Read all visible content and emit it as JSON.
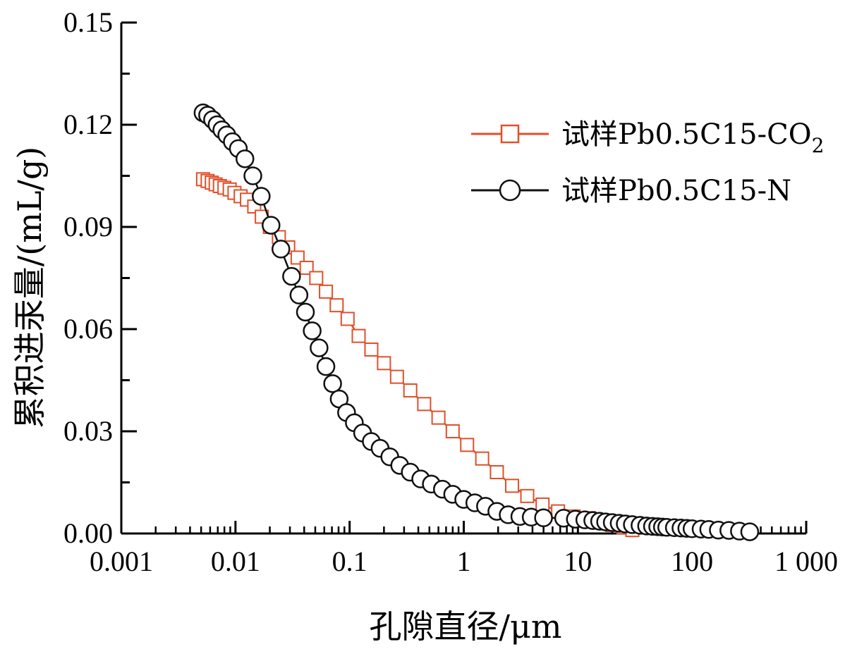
{
  "chart_data": {
    "type": "line",
    "title": "",
    "xlabel": "孔隙直径/μm",
    "ylabel": "累积进汞量/(mL/g)",
    "x_scale": "log",
    "xlim": [
      0.001,
      1000
    ],
    "ylim": [
      0,
      0.15
    ],
    "x_ticks": [
      0.001,
      0.01,
      0.1,
      1,
      10,
      100,
      1000
    ],
    "x_tick_labels": [
      "0.001",
      "0.01",
      "0.1",
      "1",
      "10",
      "100",
      "1 000"
    ],
    "y_ticks": [
      0,
      0.03,
      0.06,
      0.09,
      0.12,
      0.15
    ],
    "y_tick_labels": [
      "0.00",
      "0.03",
      "0.06",
      "0.09",
      "0.12",
      "0.15"
    ],
    "grid": false,
    "legend_position": "top-right",
    "series": [
      {
        "name": "试样Pb0.5C15-CO",
        "name_subscript": "2",
        "color": "#e0502a",
        "marker": "square",
        "x": [
          0.0052,
          0.0057,
          0.0062,
          0.0067,
          0.0073,
          0.008,
          0.0089,
          0.0098,
          0.0111,
          0.0126,
          0.0146,
          0.017,
          0.02,
          0.024,
          0.029,
          0.035,
          0.042,
          0.051,
          0.062,
          0.077,
          0.096,
          0.12,
          0.155,
          0.2,
          0.26,
          0.34,
          0.45,
          0.6,
          0.8,
          1.07,
          1.45,
          1.95,
          2.65,
          3.6,
          4.9,
          6.7,
          9.2,
          12.5,
          16,
          20,
          25,
          30
        ],
        "y": [
          0.104,
          0.1035,
          0.103,
          0.1025,
          0.102,
          0.1015,
          0.101,
          0.1,
          0.099,
          0.098,
          0.096,
          0.093,
          0.09,
          0.087,
          0.084,
          0.081,
          0.078,
          0.075,
          0.071,
          0.067,
          0.063,
          0.058,
          0.054,
          0.05,
          0.046,
          0.042,
          0.038,
          0.034,
          0.03,
          0.026,
          0.022,
          0.018,
          0.014,
          0.011,
          0.0085,
          0.0065,
          0.005,
          0.0045,
          0.0035,
          0.0025,
          0.0018,
          0.001
        ]
      },
      {
        "name": "试样Pb0.5C15-N",
        "color": "#111111",
        "marker": "circle",
        "x": [
          0.0052,
          0.0057,
          0.0063,
          0.0069,
          0.0076,
          0.0084,
          0.0094,
          0.0106,
          0.0121,
          0.0142,
          0.0168,
          0.0205,
          0.025,
          0.031,
          0.036,
          0.041,
          0.047,
          0.054,
          0.062,
          0.071,
          0.081,
          0.094,
          0.11,
          0.13,
          0.155,
          0.185,
          0.225,
          0.275,
          0.34,
          0.42,
          0.52,
          0.65,
          0.8,
          1.0,
          1.25,
          1.55,
          1.95,
          2.45,
          3.1,
          3.9,
          5.0,
          7.5,
          9.5,
          11.5,
          13.5,
          15.5,
          17.5,
          20,
          23,
          26,
          30,
          35,
          40,
          45,
          50,
          55,
          60,
          70,
          80,
          90,
          100,
          120,
          140,
          170,
          210,
          260,
          320
        ],
        "y": [
          0.1235,
          0.1228,
          0.1215,
          0.12,
          0.1185,
          0.117,
          0.115,
          0.113,
          0.11,
          0.105,
          0.099,
          0.0905,
          0.0835,
          0.0755,
          0.07,
          0.065,
          0.0595,
          0.0545,
          0.049,
          0.044,
          0.0395,
          0.0355,
          0.0325,
          0.0295,
          0.027,
          0.025,
          0.0225,
          0.02,
          0.018,
          0.016,
          0.0145,
          0.013,
          0.0115,
          0.01,
          0.009,
          0.008,
          0.0065,
          0.0055,
          0.005,
          0.0048,
          0.0046,
          0.0045,
          0.0042,
          0.004,
          0.0038,
          0.0036,
          0.0034,
          0.0032,
          0.003,
          0.0028,
          0.0026,
          0.0024,
          0.0022,
          0.0021,
          0.002,
          0.0019,
          0.0018,
          0.0017,
          0.0016,
          0.0015,
          0.0014,
          0.0013,
          0.0012,
          0.001,
          0.0009,
          0.0007,
          0.0005
        ]
      }
    ]
  }
}
